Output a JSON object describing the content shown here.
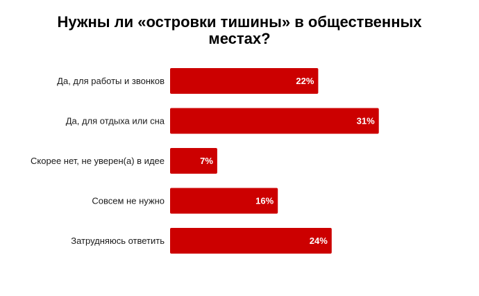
{
  "chart_data": {
    "type": "bar",
    "orientation": "horizontal",
    "title": "Нужны ли «островки тишины» в общественных местах?",
    "categories": [
      "Да, для работы и звонков",
      "Да, для отдыха или сна",
      "Скорее нет, не уверен(а) в идее",
      "Совсем не нужно",
      "Затрудняюсь ответить"
    ],
    "values": [
      22,
      31,
      7,
      16,
      24
    ],
    "value_labels": [
      "22%",
      "31%",
      "7%",
      "16%",
      "24%"
    ],
    "unit": "%",
    "grid": false,
    "legend": "none",
    "colors": {
      "bar": "#cc0000",
      "value_text": "#ffffff",
      "category_text": "#1a1a1a",
      "title_text": "#000000"
    }
  }
}
